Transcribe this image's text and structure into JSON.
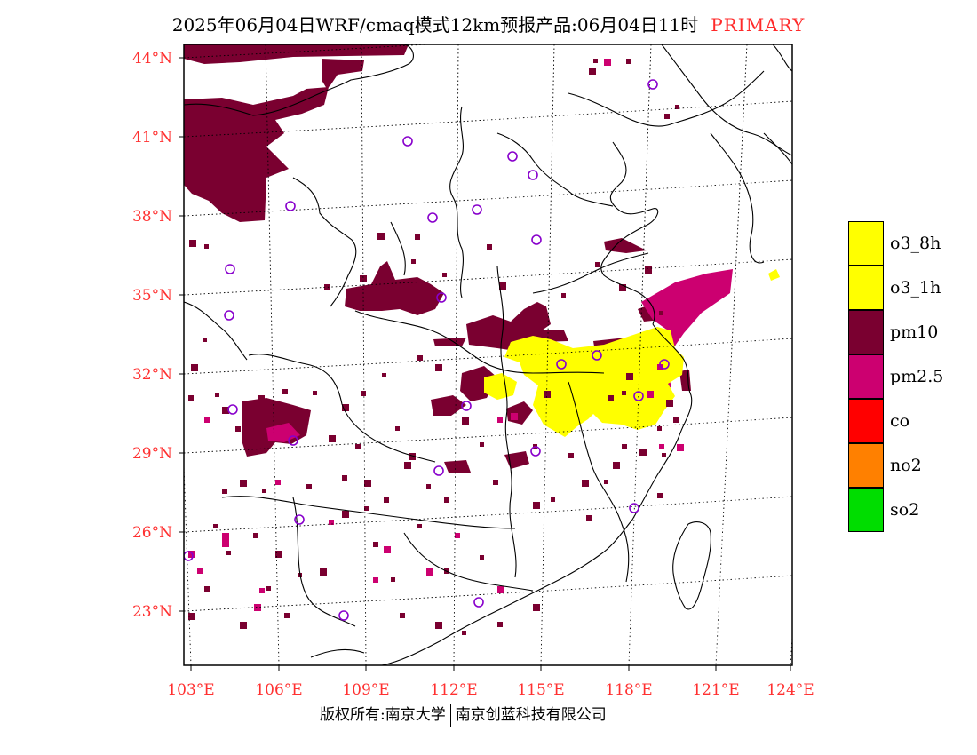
{
  "title": {
    "main": "2025年06月04日WRF/cmaq模式12km预报产品:06月04日11时",
    "tag": "PRIMARY"
  },
  "colors": {
    "o3_8h": "#ffff00",
    "o3_1h": "#ffff00",
    "pm10": "#7a0030",
    "pm25": "#cc0070",
    "co": "#ff0000",
    "no2": "#ff8000",
    "so2": "#00dd00",
    "station": "#8800cc",
    "label": "#ff3030"
  },
  "lat_labels": [
    "44°N",
    "41°N",
    "38°N",
    "35°N",
    "32°N",
    "29°N",
    "26°N",
    "23°N"
  ],
  "lon_labels": [
    "103°E",
    "106°E",
    "109°E",
    "112°E",
    "115°E",
    "118°E",
    "121°E",
    "124°E"
  ],
  "legend": [
    {
      "label": "o3_8h",
      "color": "#ffff00"
    },
    {
      "label": "o3_1h",
      "color": "#ffff00"
    },
    {
      "label": "pm10",
      "color": "#7a0030"
    },
    {
      "label": "pm2.5",
      "color": "#cc0070"
    },
    {
      "label": "co",
      "color": "#ff0000"
    },
    {
      "label": "no2",
      "color": "#ff8000"
    },
    {
      "label": "so2",
      "color": "#00dd00"
    }
  ],
  "copyright": {
    "left": "版权所有:南京大学",
    "right": "南京创蓝科技有限公司"
  }
}
